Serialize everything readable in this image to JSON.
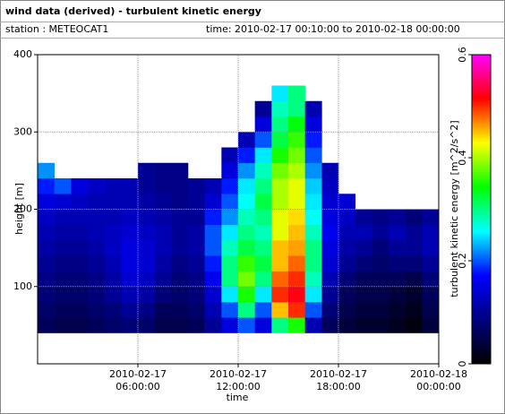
{
  "chart_data": {
    "type": "heatmap",
    "title": "wind data (derived) - turbulent kinetic energy",
    "station": "station : METEOCAT1",
    "time_range": "time: 2010-02-17 00:10:00 to 2010-02-18 00:00:00",
    "x_label": "time",
    "y_label": "height [m]",
    "colorbar_label": "turbulent kinetic energy [m^2/s^2]",
    "xlim": [
      0,
      24
    ],
    "xticks": [
      {
        "value": 6,
        "label": [
          "2010-02-17",
          "06:00:00"
        ]
      },
      {
        "value": 12,
        "label": [
          "2010-02-17",
          "12:00:00"
        ]
      },
      {
        "value": 18,
        "label": [
          "2010-02-17",
          "18:00:00"
        ]
      },
      {
        "value": 24,
        "label": [
          "2010-02-18",
          "00:00:00"
        ]
      }
    ],
    "ylim": [
      0,
      400
    ],
    "yticks": [
      100,
      200,
      300,
      400
    ],
    "zlim": [
      0,
      0.6
    ],
    "zticks": [
      0,
      0.2,
      0.4,
      0.6
    ],
    "grid": true,
    "colormap": [
      "#000000",
      "#000080",
      "#0000ff",
      "#00ffff",
      "#00ff00",
      "#ffff00",
      "#ff0000",
      "#ff00ff"
    ],
    "x_bins": [
      0,
      1,
      2,
      3,
      4,
      5,
      6,
      7,
      8,
      9,
      10,
      11,
      12,
      13,
      14,
      15,
      16,
      17,
      18,
      19,
      20,
      21,
      22,
      23,
      24
    ],
    "y_bins": [
      40,
      60,
      80,
      100,
      120,
      140,
      160,
      180,
      200,
      220,
      240,
      260,
      280,
      300,
      320,
      340,
      360
    ],
    "z": [
      [
        0.06,
        0.05,
        0.05,
        0.06,
        0.07,
        0.08,
        0.07,
        0.05,
        0.05,
        0.06,
        0.1,
        0.15,
        0.2,
        0.15,
        0.3,
        0.35,
        0.12,
        0.06,
        0.04,
        0.03,
        0.03,
        0.02,
        0.01,
        0.04
      ],
      [
        0.07,
        0.06,
        0.06,
        0.07,
        0.08,
        0.1,
        0.09,
        0.06,
        0.06,
        0.07,
        0.12,
        0.2,
        0.3,
        0.2,
        0.45,
        0.5,
        0.2,
        0.08,
        0.05,
        0.04,
        0.04,
        0.03,
        0.02,
        0.05
      ],
      [
        0.08,
        0.07,
        0.07,
        0.08,
        0.1,
        0.12,
        0.11,
        0.08,
        0.07,
        0.08,
        0.14,
        0.25,
        0.35,
        0.25,
        0.5,
        0.52,
        0.25,
        0.1,
        0.06,
        0.05,
        0.05,
        0.04,
        0.03,
        0.06
      ],
      [
        0.09,
        0.08,
        0.08,
        0.09,
        0.11,
        0.14,
        0.13,
        0.1,
        0.08,
        0.09,
        0.16,
        0.3,
        0.38,
        0.3,
        0.48,
        0.5,
        0.28,
        0.12,
        0.08,
        0.06,
        0.06,
        0.06,
        0.05,
        0.08
      ],
      [
        0.1,
        0.09,
        0.09,
        0.1,
        0.12,
        0.15,
        0.14,
        0.11,
        0.09,
        0.1,
        0.18,
        0.3,
        0.36,
        0.32,
        0.45,
        0.48,
        0.3,
        0.14,
        0.1,
        0.08,
        0.07,
        0.08,
        0.08,
        0.1
      ],
      [
        0.11,
        0.1,
        0.1,
        0.11,
        0.13,
        0.15,
        0.14,
        0.12,
        0.1,
        0.11,
        0.2,
        0.28,
        0.32,
        0.3,
        0.45,
        0.46,
        0.3,
        0.15,
        0.11,
        0.1,
        0.08,
        0.1,
        0.1,
        0.12
      ],
      [
        0.12,
        0.11,
        0.11,
        0.12,
        0.13,
        0.14,
        0.13,
        0.12,
        0.1,
        0.11,
        0.2,
        0.25,
        0.3,
        0.28,
        0.42,
        0.45,
        0.28,
        0.16,
        0.12,
        0.12,
        0.1,
        0.12,
        0.1,
        0.12
      ],
      [
        0.13,
        0.12,
        0.12,
        0.12,
        0.12,
        0.13,
        0.12,
        0.11,
        0.1,
        0.1,
        0.18,
        0.22,
        0.28,
        0.3,
        0.42,
        0.44,
        0.26,
        0.15,
        0.13,
        0.1,
        0.09,
        0.1,
        0.08,
        0.1
      ],
      [
        0.15,
        0.14,
        0.13,
        0.12,
        0.12,
        0.12,
        0.11,
        0.1,
        0.09,
        0.1,
        0.14,
        0.2,
        0.26,
        0.32,
        0.4,
        0.42,
        0.25,
        0.14,
        0.14,
        null,
        null,
        null,
        null,
        null
      ],
      [
        0.18,
        0.2,
        0.15,
        0.13,
        0.12,
        0.12,
        0.1,
        0.09,
        0.09,
        0.1,
        0.12,
        0.18,
        0.25,
        0.3,
        0.4,
        0.42,
        0.24,
        0.13,
        null,
        null,
        null,
        null,
        null,
        null
      ],
      [
        0.22,
        null,
        null,
        null,
        null,
        null,
        0.1,
        0.09,
        0.09,
        null,
        null,
        0.15,
        0.22,
        0.28,
        0.38,
        0.4,
        0.22,
        0.12,
        null,
        null,
        null,
        null,
        null,
        null
      ],
      [
        null,
        null,
        null,
        null,
        null,
        null,
        null,
        null,
        null,
        null,
        null,
        0.12,
        0.18,
        0.25,
        0.35,
        0.38,
        0.2,
        null,
        null,
        null,
        null,
        null,
        null,
        null
      ],
      [
        null,
        null,
        null,
        null,
        null,
        null,
        null,
        null,
        null,
        null,
        null,
        null,
        0.12,
        0.2,
        0.32,
        0.36,
        0.18,
        null,
        null,
        null,
        null,
        null,
        null,
        null
      ],
      [
        null,
        null,
        null,
        null,
        null,
        null,
        null,
        null,
        null,
        null,
        null,
        null,
        null,
        0.15,
        0.3,
        0.34,
        0.15,
        null,
        null,
        null,
        null,
        null,
        null,
        null
      ],
      [
        null,
        null,
        null,
        null,
        null,
        null,
        null,
        null,
        null,
        null,
        null,
        null,
        null,
        0.1,
        0.28,
        0.3,
        0.12,
        null,
        null,
        null,
        null,
        null,
        null,
        null
      ],
      [
        null,
        null,
        null,
        null,
        null,
        null,
        null,
        null,
        null,
        null,
        null,
        null,
        null,
        null,
        0.25,
        0.3,
        null,
        null,
        null,
        null,
        null,
        null,
        null,
        null
      ]
    ]
  }
}
